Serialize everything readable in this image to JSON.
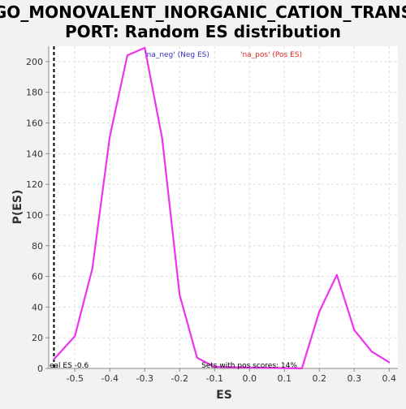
{
  "chart_data": {
    "type": "line",
    "title_line1": "GO_MONOVALENT_INORGANIC_CATION_TRANS",
    "title_line2": "PORT: Random ES distribution",
    "xlabel": "ES",
    "ylabel": "P(ES)",
    "xlim": [
      -0.575,
      0.425
    ],
    "ylim": [
      0,
      210
    ],
    "x_ticks": [
      -0.5,
      -0.4,
      -0.3,
      -0.2,
      -0.1,
      0.0,
      0.1,
      0.2,
      0.3,
      0.4
    ],
    "x_tick_labels": [
      "-0.5",
      "-0.4",
      "-0.3",
      "-0.2",
      "-0.1",
      "0.0",
      "0.1",
      "0.2",
      "0.3",
      "0.4"
    ],
    "y_ticks": [
      0,
      20,
      40,
      60,
      80,
      100,
      120,
      140,
      160,
      180,
      200
    ],
    "y_tick_labels": [
      "0",
      "20",
      "40",
      "60",
      "80",
      "100",
      "120",
      "140",
      "160",
      "180",
      "200"
    ],
    "grid": true,
    "legend": [
      {
        "label": "'na_neg' (Neg ES)",
        "color": "#3333cc"
      },
      {
        "label": "'na_pos' (Pos ES)",
        "color": "#dd2222"
      }
    ],
    "series": [
      {
        "color": "#ee33ee",
        "x": [
          -0.56,
          -0.5,
          -0.45,
          -0.4,
          -0.35,
          -0.3,
          -0.25,
          -0.2,
          -0.15,
          -0.1,
          0.15,
          0.2,
          0.25,
          0.3,
          0.35,
          0.4
        ],
        "y": [
          6,
          21,
          65,
          151,
          204,
          209,
          150,
          48,
          7,
          1,
          0,
          37,
          61,
          25,
          11,
          4
        ]
      }
    ],
    "real_es": {
      "x": -0.56,
      "label": "eal ES -0.6"
    },
    "annotation": "Sets with pos scores: 14%"
  }
}
